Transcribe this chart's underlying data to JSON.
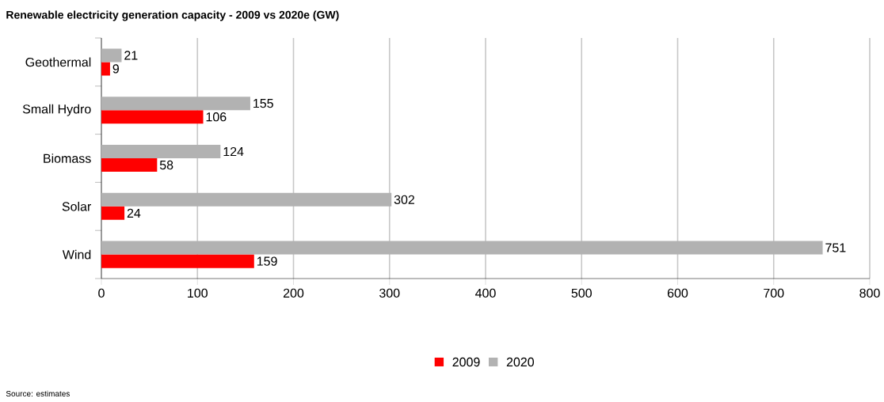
{
  "chart_data": {
    "type": "bar",
    "orientation": "horizontal",
    "title": "Renewable electricity generation capacity - 2009 vs 2020e (GW)",
    "categories": [
      "Geothermal",
      "Small Hydro",
      "Biomass",
      "Solar",
      "Wind"
    ],
    "series": [
      {
        "name": "2009",
        "color": "#ff0000",
        "values": [
          9,
          106,
          58,
          24,
          159
        ]
      },
      {
        "name": "2020",
        "color": "#b2b2b2",
        "values": [
          21,
          155,
          124,
          302,
          751
        ]
      }
    ],
    "xlim": [
      0,
      800
    ],
    "xticks": [
      0,
      100,
      200,
      300,
      400,
      500,
      600,
      700,
      800
    ],
    "grid": "x",
    "legend": "bottom",
    "data_labels": true,
    "annotations": [
      "Source: estimates"
    ]
  }
}
